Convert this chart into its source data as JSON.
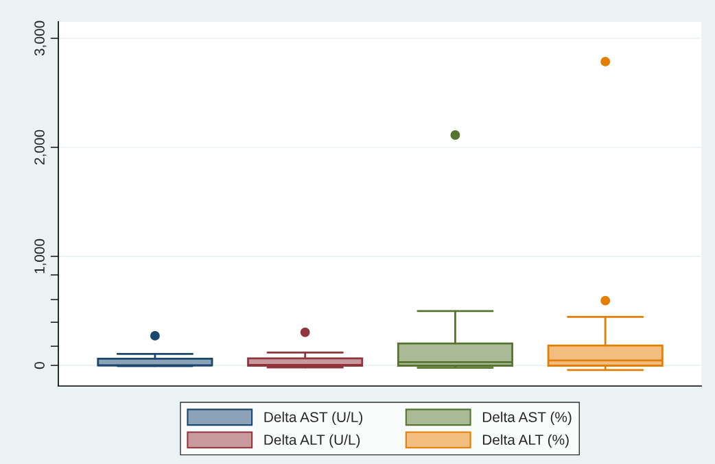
{
  "chart_data": {
    "type": "box",
    "categories": [
      null,
      null,
      null,
      null
    ],
    "ylim": [
      -189,
      3151
    ],
    "yticks": [
      0,
      {
        "value": 176,
        "label": null
      },
      {
        "value": 396,
        "label": null
      },
      {
        "value": 604,
        "label": null
      },
      {
        "value": 830,
        "label": null
      },
      {
        "value": 1000,
        "label": "1,000"
      },
      {
        "value": 2000,
        "label": "2,000"
      },
      {
        "value": 3000,
        "label": "3,000"
      }
    ],
    "grid": "y",
    "legend": "bottom",
    "series": [
      {
        "name": "Delta AST (U/L)",
        "color": "#1a476f",
        "boxes": [
          {
            "low": -5,
            "q1": 0,
            "median": 0,
            "q3": 61,
            "high": 105,
            "outliers": [
              272
            ]
          },
          null,
          null,
          null
        ]
      },
      {
        "name": "Delta ALT (U/L)",
        "color": "#90353b",
        "boxes": [
          null,
          {
            "low": -19,
            "q1": -2,
            "median": 5,
            "q3": 65,
            "high": 118,
            "outliers": [
              304
            ]
          },
          null,
          null
        ]
      },
      {
        "name": "Delta AST (%)",
        "color": "#55752f",
        "boxes": [
          null,
          null,
          {
            "low": -21,
            "q1": -2,
            "median": 30,
            "q3": 201,
            "high": 499,
            "outliers": [
              2113
            ]
          },
          null
        ]
      },
      {
        "name": "Delta ALT (%)",
        "color": "#e37e00",
        "boxes": [
          null,
          null,
          null,
          {
            "low": -42,
            "q1": -2,
            "median": 46,
            "q3": 182,
            "high": 445,
            "outliers": [
              594,
              2786
            ]
          }
        ]
      }
    ]
  }
}
